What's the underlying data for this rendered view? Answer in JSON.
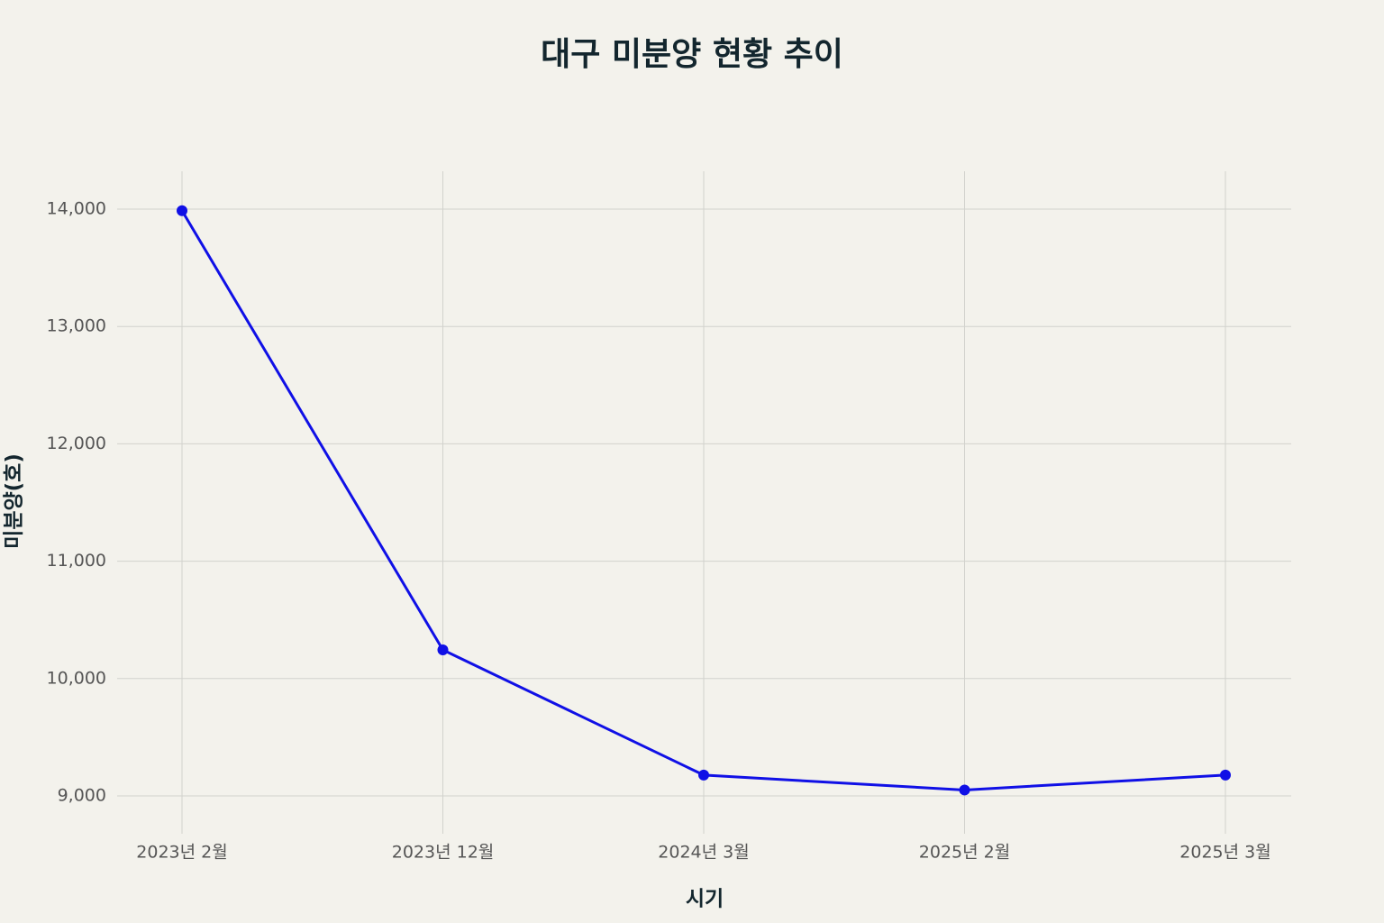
{
  "chart_data": {
    "type": "line",
    "title": "대구 미분양 현황 추이",
    "x_label": "시기",
    "y_label": "미분양(호)",
    "categories": [
      "2023년 2월",
      "2023년 12월",
      "2024년 3월",
      "2025년 2월",
      "2025년 3월"
    ],
    "series": [
      {
        "name": "미분양",
        "color": "#1010e6",
        "values": [
          13987,
          10244,
          9177,
          9050,
          9177
        ]
      }
    ],
    "ylim": [
      8677,
      14323
    ],
    "yticks": [
      {
        "value": 9000,
        "label": "9,000"
      },
      {
        "value": 10000,
        "label": "10,000"
      },
      {
        "value": 11000,
        "label": "11,000"
      },
      {
        "value": 12000,
        "label": "12,000"
      },
      {
        "value": 13000,
        "label": "13,000"
      },
      {
        "value": 14000,
        "label": "14,000"
      }
    ],
    "grid": true
  }
}
